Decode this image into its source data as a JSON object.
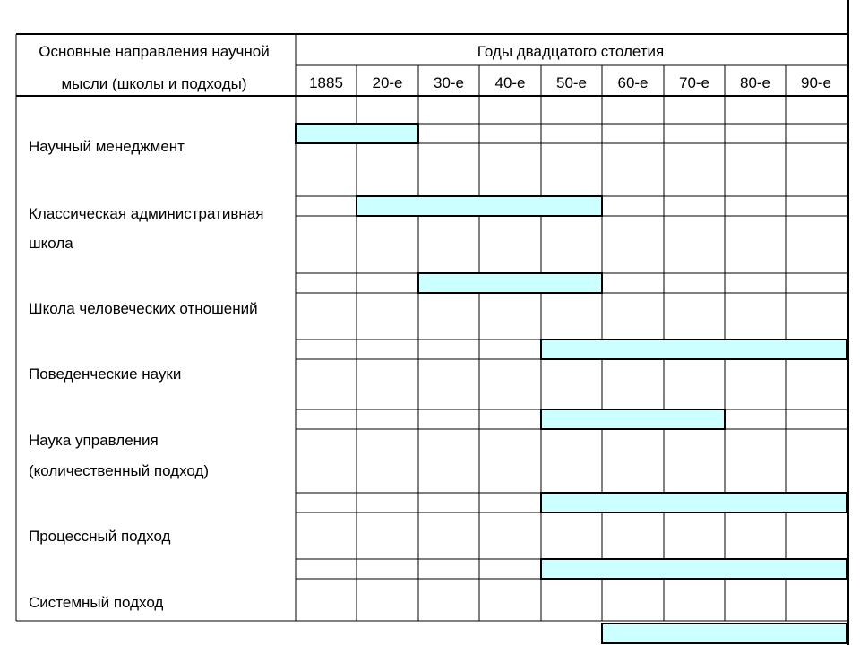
{
  "header": {
    "left_line1": "Основные направления научной",
    "left_line2": "мысли (школы и подходы)",
    "right": "Годы двадцатого столетия"
  },
  "columns": [
    "1885",
    "20-е",
    "30-е",
    "40-е",
    "50-е",
    "60-е",
    "70-е",
    "80-е",
    "90-е"
  ],
  "chart_data": {
    "type": "gantt",
    "title": "",
    "periods": [
      "1885",
      "20-е",
      "30-е",
      "40-е",
      "50-е",
      "60-е",
      "70-е",
      "80-е",
      "90-е"
    ],
    "bar_color": "#ccffff",
    "rows": [
      {
        "label_lines": [
          "Научный менеджмент"
        ],
        "start": 0,
        "end": 2
      },
      {
        "label_lines": [
          "Классическая административная",
          "школа"
        ],
        "start": 1,
        "end": 5
      },
      {
        "label_lines": [
          "Школа человеческих отношений"
        ],
        "start": 2,
        "end": 5
      },
      {
        "label_lines": [
          "Поведенческие науки"
        ],
        "start": 4,
        "end": 9
      },
      {
        "label_lines": [
          "Наука управления",
          "(количественный подход)"
        ],
        "start": 4,
        "end": 7
      },
      {
        "label_lines": [
          "Процессный подход"
        ],
        "start": 4,
        "end": 9
      },
      {
        "label_lines": [
          "Системный подход"
        ],
        "start": 4,
        "end": 9
      },
      {
        "label_lines": [],
        "start": 5,
        "end": 9
      }
    ]
  }
}
